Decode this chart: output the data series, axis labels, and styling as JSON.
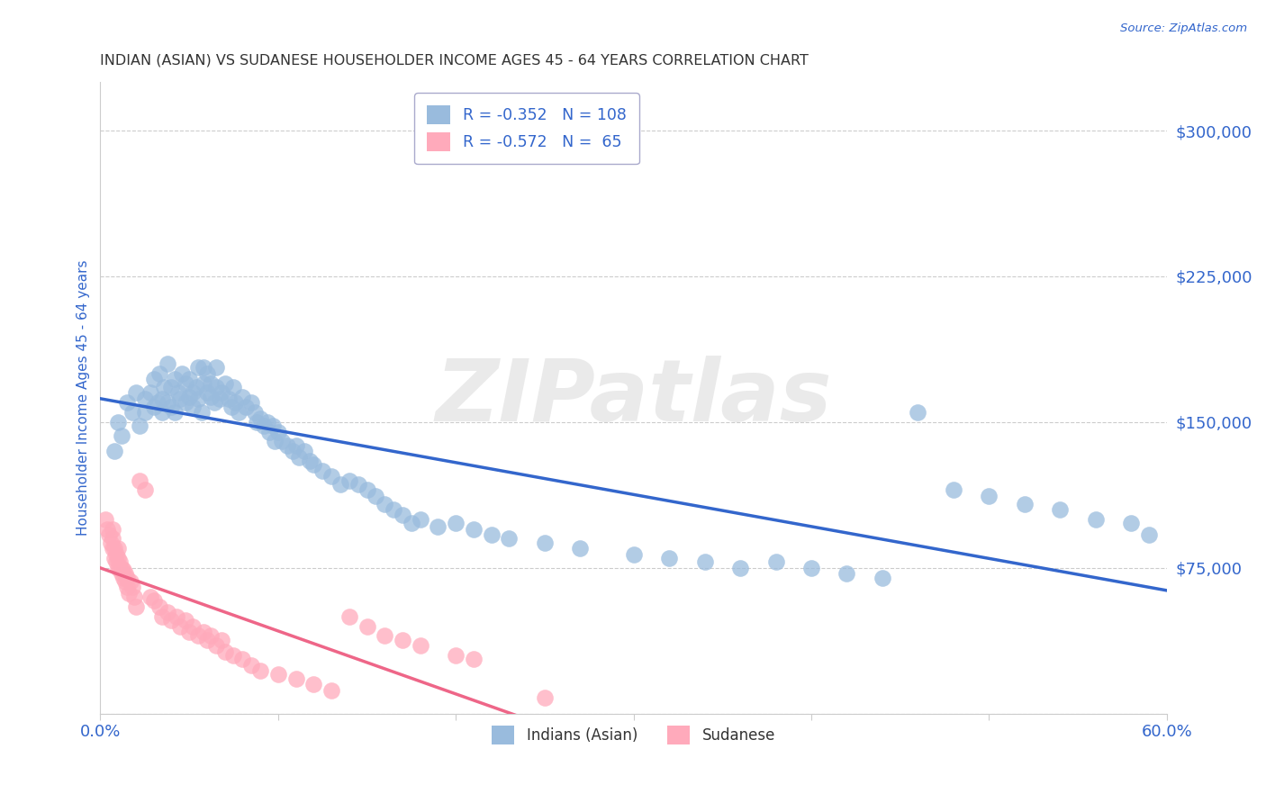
{
  "title": "INDIAN (ASIAN) VS SUDANESE HOUSEHOLDER INCOME AGES 45 - 64 YEARS CORRELATION CHART",
  "source": "Source: ZipAtlas.com",
  "ylabel": "Householder Income Ages 45 - 64 years",
  "watermark": "ZIPatlas",
  "legend_label1": "Indians (Asian)",
  "legend_label2": "Sudanese",
  "r1": -0.352,
  "n1": 108,
  "r2": -0.572,
  "n2": 65,
  "color_blue": "#99BBDD",
  "color_pink": "#FFAABB",
  "color_blue_line": "#3366CC",
  "color_pink_line": "#EE6688",
  "xmin": 0.0,
  "xmax": 0.6,
  "ymin": 0,
  "ymax": 325000,
  "yticks": [
    0,
    75000,
    150000,
    225000,
    300000
  ],
  "title_color": "#333333",
  "axis_color": "#3366CC",
  "tick_color": "#3366CC",
  "grid_color": "#CCCCCC",
  "bg_color": "#FFFFFF",
  "blue_x": [
    0.008,
    0.01,
    0.012,
    0.015,
    0.018,
    0.02,
    0.022,
    0.025,
    0.025,
    0.028,
    0.03,
    0.03,
    0.032,
    0.033,
    0.035,
    0.035,
    0.036,
    0.038,
    0.038,
    0.04,
    0.04,
    0.042,
    0.042,
    0.044,
    0.045,
    0.046,
    0.048,
    0.048,
    0.05,
    0.05,
    0.052,
    0.052,
    0.054,
    0.055,
    0.055,
    0.057,
    0.058,
    0.058,
    0.06,
    0.06,
    0.062,
    0.062,
    0.064,
    0.065,
    0.065,
    0.067,
    0.068,
    0.07,
    0.072,
    0.074,
    0.075,
    0.076,
    0.078,
    0.08,
    0.082,
    0.085,
    0.087,
    0.088,
    0.09,
    0.092,
    0.094,
    0.095,
    0.097,
    0.098,
    0.1,
    0.102,
    0.105,
    0.108,
    0.11,
    0.112,
    0.115,
    0.118,
    0.12,
    0.125,
    0.13,
    0.135,
    0.14,
    0.145,
    0.15,
    0.155,
    0.16,
    0.165,
    0.17,
    0.175,
    0.18,
    0.19,
    0.2,
    0.21,
    0.22,
    0.23,
    0.25,
    0.27,
    0.3,
    0.32,
    0.34,
    0.36,
    0.38,
    0.4,
    0.42,
    0.44,
    0.46,
    0.48,
    0.5,
    0.52,
    0.54,
    0.56,
    0.58,
    0.59
  ],
  "blue_y": [
    135000,
    150000,
    143000,
    160000,
    155000,
    165000,
    148000,
    162000,
    155000,
    165000,
    158000,
    172000,
    160000,
    175000,
    162000,
    155000,
    168000,
    180000,
    160000,
    158000,
    168000,
    172000,
    155000,
    165000,
    162000,
    175000,
    160000,
    170000,
    163000,
    172000,
    165000,
    158000,
    168000,
    178000,
    162000,
    155000,
    170000,
    178000,
    165000,
    175000,
    163000,
    170000,
    160000,
    168000,
    178000,
    162000,
    165000,
    170000,
    162000,
    158000,
    168000,
    160000,
    155000,
    163000,
    158000,
    160000,
    155000,
    150000,
    152000,
    148000,
    150000,
    145000,
    148000,
    140000,
    145000,
    140000,
    138000,
    135000,
    138000,
    132000,
    135000,
    130000,
    128000,
    125000,
    122000,
    118000,
    120000,
    118000,
    115000,
    112000,
    108000,
    105000,
    102000,
    98000,
    100000,
    96000,
    98000,
    95000,
    92000,
    90000,
    88000,
    85000,
    82000,
    80000,
    78000,
    75000,
    78000,
    75000,
    72000,
    70000,
    155000,
    115000,
    112000,
    108000,
    105000,
    100000,
    98000,
    92000
  ],
  "pink_x": [
    0.003,
    0.004,
    0.005,
    0.006,
    0.007,
    0.007,
    0.007,
    0.008,
    0.008,
    0.009,
    0.009,
    0.01,
    0.01,
    0.01,
    0.011,
    0.011,
    0.012,
    0.012,
    0.013,
    0.013,
    0.014,
    0.014,
    0.015,
    0.015,
    0.016,
    0.017,
    0.018,
    0.019,
    0.02,
    0.022,
    0.025,
    0.028,
    0.03,
    0.033,
    0.035,
    0.038,
    0.04,
    0.043,
    0.045,
    0.048,
    0.05,
    0.052,
    0.055,
    0.058,
    0.06,
    0.062,
    0.065,
    0.068,
    0.07,
    0.075,
    0.08,
    0.085,
    0.09,
    0.1,
    0.11,
    0.12,
    0.13,
    0.14,
    0.15,
    0.16,
    0.17,
    0.18,
    0.2,
    0.21,
    0.25
  ],
  "pink_y": [
    100000,
    95000,
    92000,
    88000,
    85000,
    90000,
    95000,
    80000,
    85000,
    78000,
    82000,
    75000,
    80000,
    85000,
    75000,
    78000,
    72000,
    75000,
    70000,
    74000,
    68000,
    72000,
    65000,
    70000,
    62000,
    68000,
    65000,
    60000,
    55000,
    120000,
    115000,
    60000,
    58000,
    55000,
    50000,
    52000,
    48000,
    50000,
    45000,
    48000,
    42000,
    45000,
    40000,
    42000,
    38000,
    40000,
    35000,
    38000,
    32000,
    30000,
    28000,
    25000,
    22000,
    20000,
    18000,
    15000,
    12000,
    50000,
    45000,
    40000,
    38000,
    35000,
    30000,
    28000,
    8000
  ]
}
